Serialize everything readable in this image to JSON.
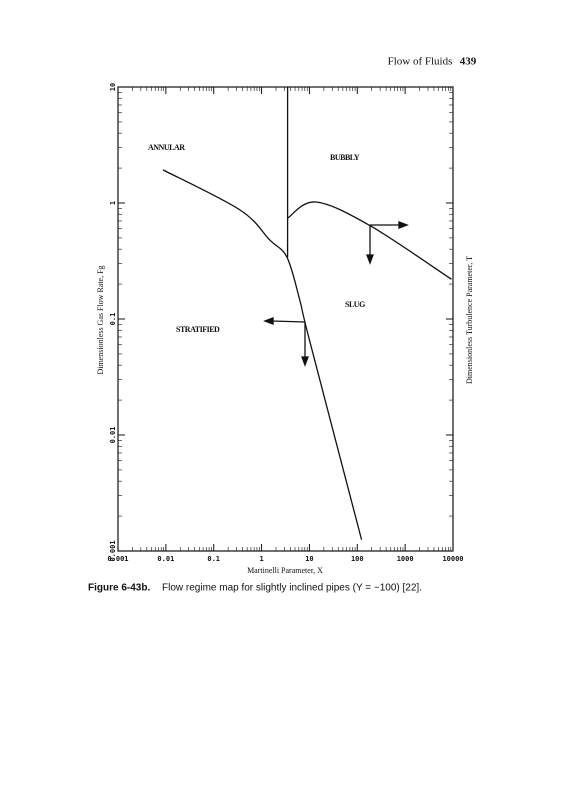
{
  "header": {
    "title": "Flow of Fluids",
    "page": "439"
  },
  "caption": {
    "label": "Figure 6-43b.",
    "text": "Flow regime map for slightly inclined pipes (Y = −100) [22]."
  },
  "chart_data": {
    "type": "line",
    "x_label": "Martinelli Parameter, X",
    "y_label": "Dimensionless Gas Flow Rate, Fg",
    "y2_label": "Dimensionless Turbulence Parameter, T",
    "xscale": "log",
    "yscale": "log",
    "xlim": [
      0.001,
      10000
    ],
    "ylim": [
      0.001,
      10
    ],
    "xticks": [
      0.001,
      0.01,
      0.1,
      1,
      10,
      100,
      1000,
      10000
    ],
    "yticks": [
      0.001,
      0.01,
      0.1,
      1,
      10
    ],
    "annotations": [
      "ANNULAR",
      "BUBBLY",
      "SLUG",
      "STRATIFIED"
    ],
    "series": [
      {
        "color": "#111111",
        "x": [
          0.0087,
          0.355,
          1.48,
          3.4,
          6.3,
          10,
          123
        ],
        "values": [
          1.93,
          0.87,
          0.48,
          0.34,
          0.145,
          0.066,
          0.00125
        ]
      },
      {
        "color": "#111111",
        "x": [
          3.5,
          3.5
        ],
        "values": [
          10,
          0.34
        ]
      },
      {
        "color": "#111111",
        "x": [
          3.5,
          13.5,
          182,
          9300
        ],
        "values": [
          0.74,
          1.02,
          0.64,
          0.22
        ]
      }
    ]
  }
}
